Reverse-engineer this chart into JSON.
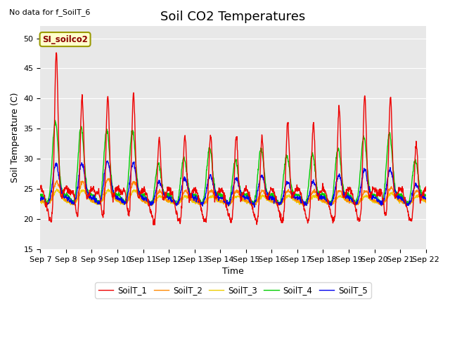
{
  "title": "Soil CO2 Temperatures",
  "xlabel": "Time",
  "ylabel": "Soil Temperature (C)",
  "top_left_text": "No data for f_SoilT_6",
  "annotation_text": "SI_soilco2",
  "ylim": [
    15,
    52
  ],
  "yticks": [
    15,
    20,
    25,
    30,
    35,
    40,
    45,
    50
  ],
  "series_colors": {
    "SoilT_1": "#ee0000",
    "SoilT_2": "#ff8800",
    "SoilT_3": "#eecc00",
    "SoilT_4": "#00cc00",
    "SoilT_5": "#0000ee"
  },
  "background_color": "#ffffff",
  "plot_bg_color": "#e8e8e8",
  "grid_color": "#ffffff",
  "x_tick_labels": [
    "Sep 7",
    "Sep 8",
    "Sep 9",
    "Sep 10",
    "Sep 11",
    "Sep 12",
    "Sep 13",
    "Sep 14",
    "Sep 15",
    "Sep 16",
    "Sep 17",
    "Sep 18",
    "Sep 19",
    "Sep 20",
    "Sep 21",
    "Sep 22"
  ],
  "title_fontsize": 13,
  "axis_label_fontsize": 9,
  "tick_fontsize": 8
}
